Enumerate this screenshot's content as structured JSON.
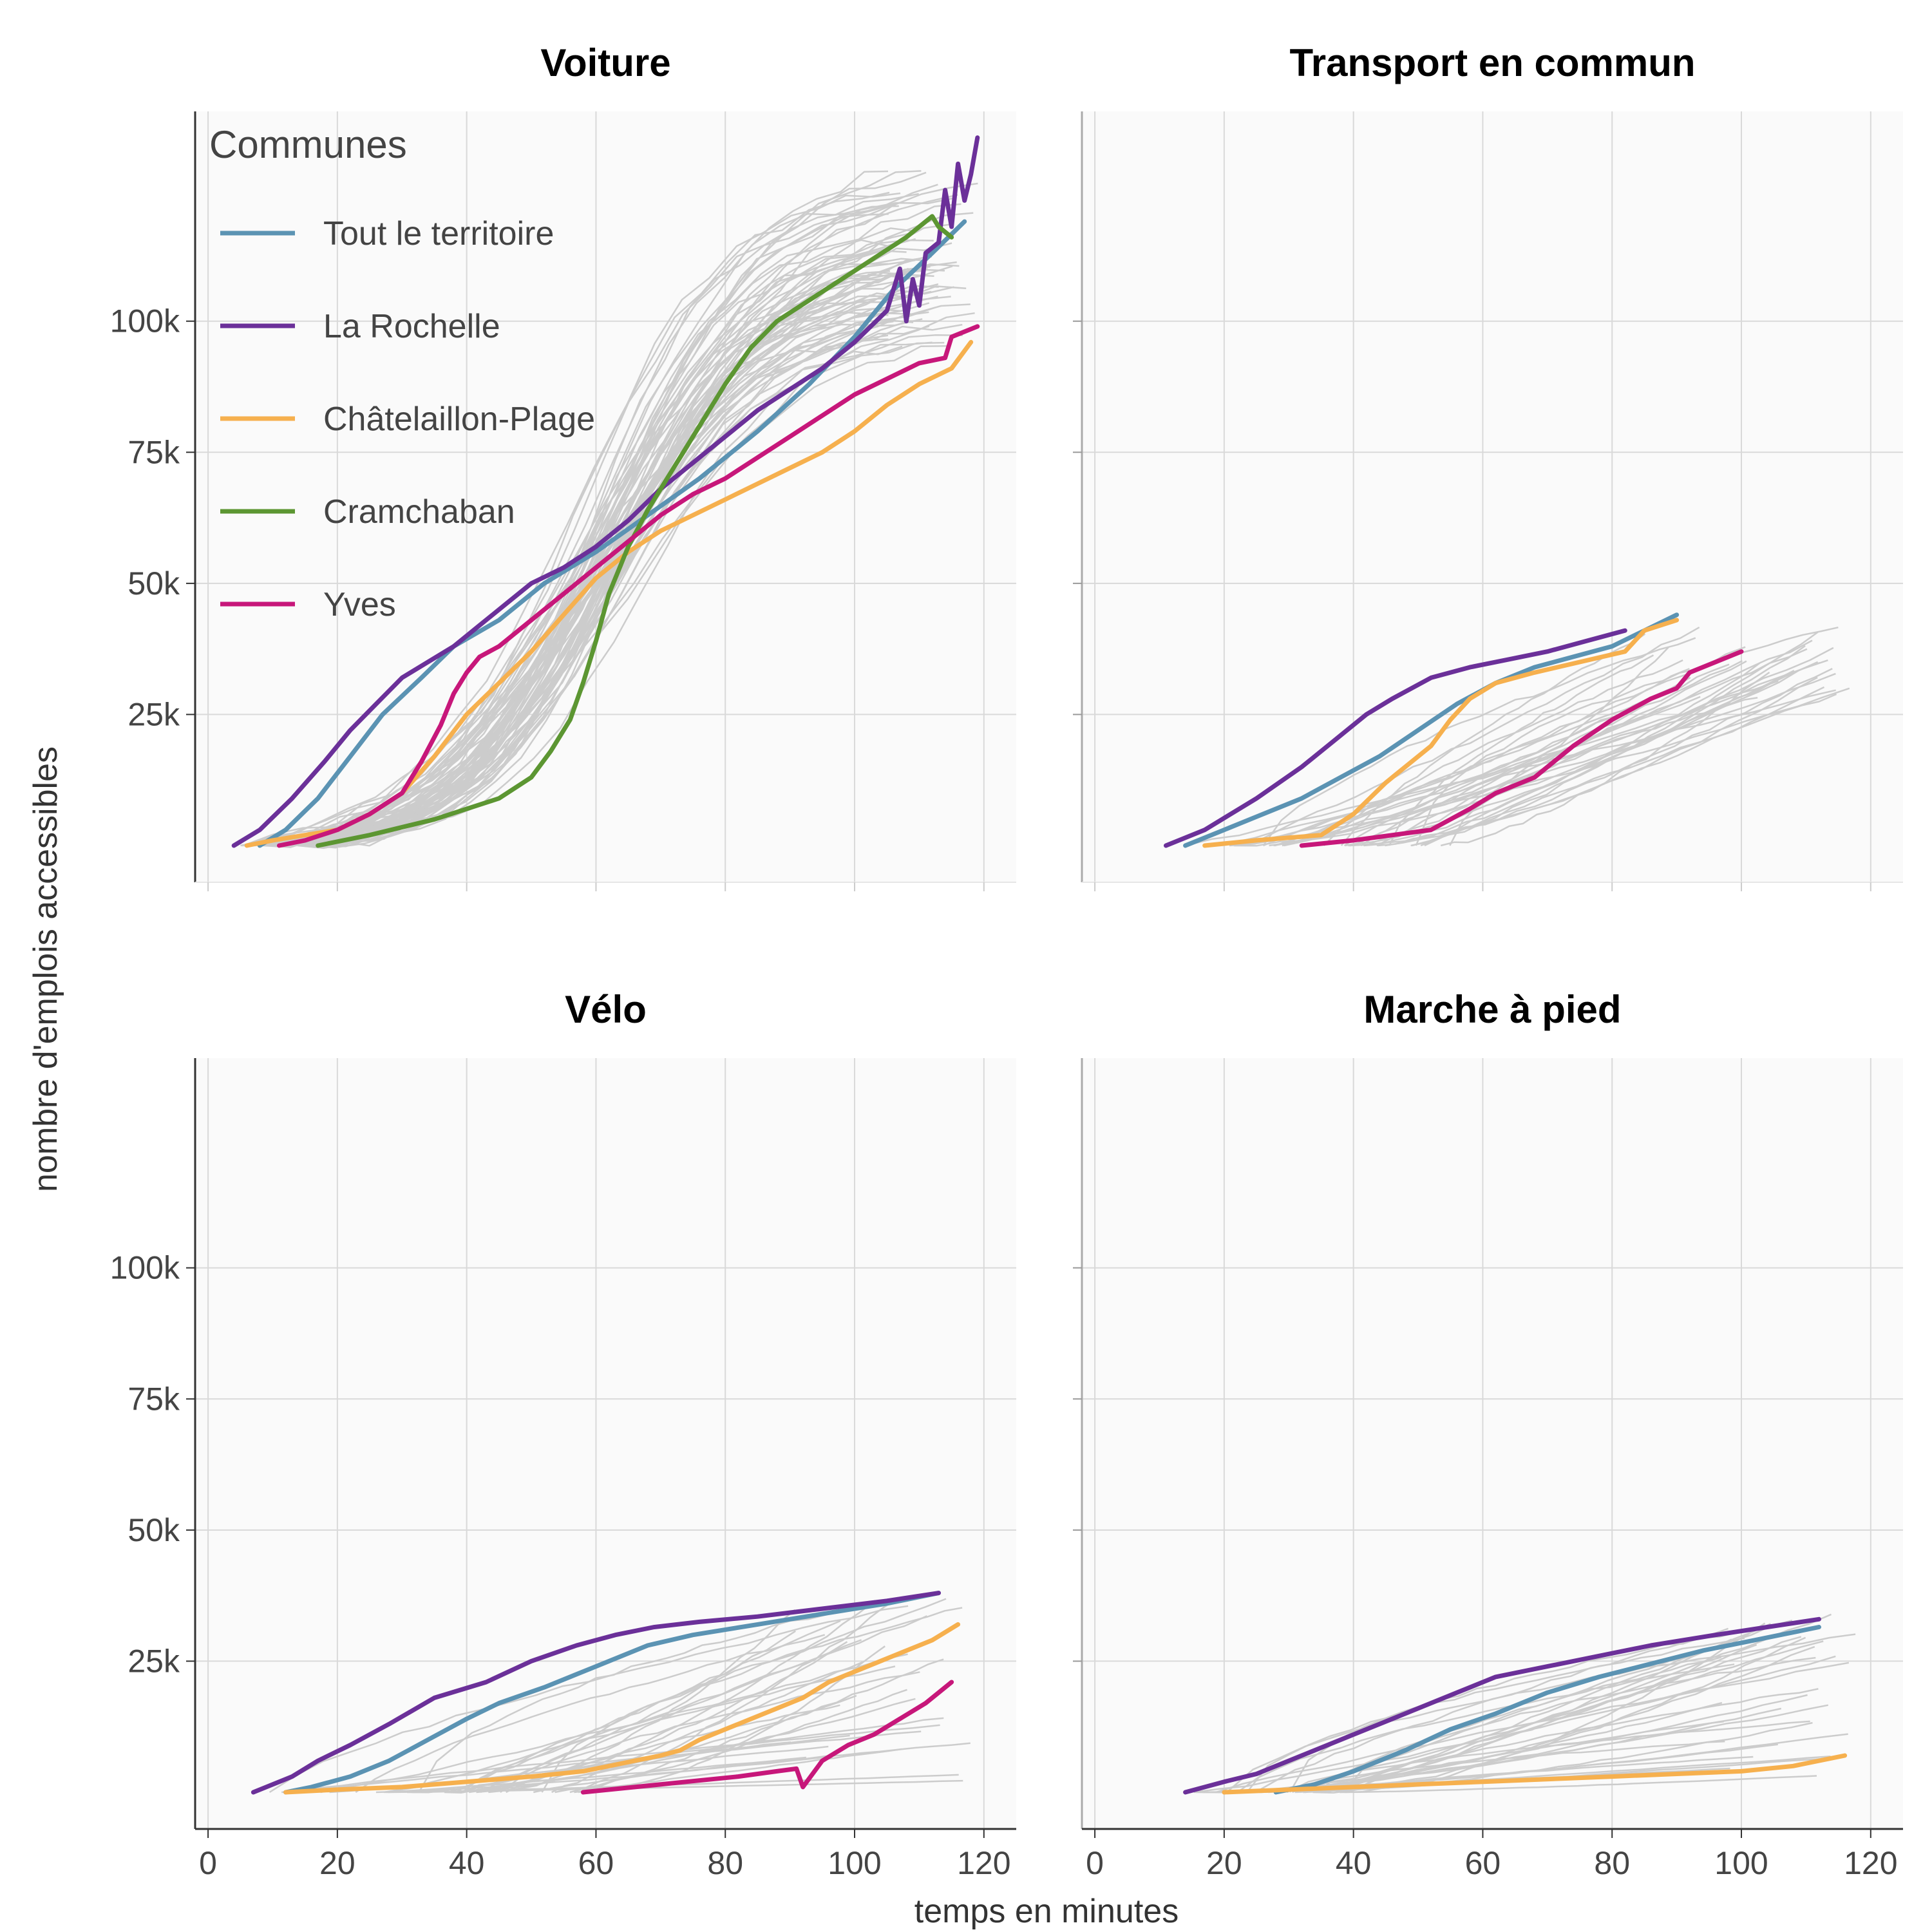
{
  "chart_data": {
    "type": "line",
    "xlabel": "temps en minutes",
    "ylabel": "nombre d'emplois accessibles",
    "x_ticks": [
      0,
      20,
      40,
      60,
      80,
      100,
      120
    ],
    "y_ticks": [
      25000,
      50000,
      75000,
      100000
    ],
    "y_tick_labels": [
      "25k",
      "50k",
      "75k",
      "100k"
    ],
    "xlim": [
      -2,
      125
    ],
    "ylim": [
      -7000,
      140000
    ],
    "grid": true,
    "legend": {
      "title": "Communes",
      "placement": "top-left",
      "entries": [
        "Tout le territoire",
        "La Rochelle",
        "Châtelaillon-Plage",
        "Cramchaban",
        "Yves"
      ]
    },
    "colors": {
      "Tout le territoire": "#5b93b3",
      "La Rochelle": "#6b3099",
      "Châtelaillon-Plage": "#f6b04e",
      "Cramchaban": "#5c9632",
      "Yves": "#c7177a",
      "other": "#cccccc"
    },
    "panels": [
      {
        "title": "Voiture",
        "series": [
          {
            "name": "Tout le territoire",
            "x": [
              8,
              12,
              17,
              22,
              27,
              33,
              38,
              45,
              52,
              60,
              68,
              76,
              85,
              93,
              100,
              106,
              112,
              117
            ],
            "y": [
              0,
              3000,
              9000,
              17000,
              25000,
              32000,
              38000,
              43000,
              50000,
              56000,
              63000,
              70000,
              79000,
              88000,
              97000,
              106000,
              113000,
              119000
            ]
          },
          {
            "name": "La Rochelle",
            "x": [
              4,
              8,
              13,
              18,
              22,
              26,
              30,
              34,
              38,
              42,
              46,
              50,
              55,
              60,
              65,
              70,
              75,
              80,
              85,
              90,
              95,
              100,
              105,
              107,
              108,
              109,
              110,
              111,
              113,
              114,
              115,
              116,
              117,
              118,
              119
            ],
            "y": [
              0,
              3000,
              9000,
              16000,
              22000,
              27000,
              32000,
              35000,
              38000,
              42000,
              46000,
              50000,
              53000,
              57000,
              62000,
              68000,
              73000,
              78000,
              83000,
              87000,
              91000,
              96000,
              102000,
              110000,
              100000,
              108000,
              103000,
              113000,
              115000,
              125000,
              118000,
              130000,
              123000,
              128000,
              135000
            ]
          },
          {
            "name": "Châtelaillon-Plage",
            "x": [
              6,
              10,
              15,
              20,
              25,
              30,
              35,
              40,
              45,
              50,
              55,
              60,
              65,
              70,
              75,
              80,
              85,
              90,
              95,
              100,
              105,
              110,
              115,
              118
            ],
            "y": [
              0,
              1000,
              2000,
              3000,
              6000,
              10000,
              17000,
              25000,
              31000,
              37000,
              44000,
              51000,
              56000,
              60000,
              63000,
              66000,
              69000,
              72000,
              75000,
              79000,
              84000,
              88000,
              91000,
              96000
            ]
          },
          {
            "name": "Cramchaban",
            "x": [
              17,
              25,
              35,
              45,
              50,
              53,
              56,
              58,
              60,
              62,
              65,
              68,
              72,
              76,
              80,
              84,
              88,
              93,
              98,
              103,
              108,
              112,
              113,
              115
            ],
            "y": [
              0,
              2000,
              5000,
              9000,
              13000,
              18000,
              24000,
              31000,
              39000,
              48000,
              57000,
              64000,
              72000,
              80000,
              88000,
              95000,
              100000,
              104000,
              108000,
              112000,
              116000,
              120000,
              118000,
              116000
            ]
          },
          {
            "name": "Yves",
            "x": [
              11,
              15,
              20,
              25,
              30,
              33,
              36,
              38,
              40,
              42,
              45,
              47,
              50,
              55,
              60,
              65,
              70,
              75,
              80,
              85,
              90,
              95,
              100,
              105,
              110,
              114,
              115,
              117,
              119
            ],
            "y": [
              0,
              1000,
              3000,
              6000,
              10000,
              16000,
              23000,
              29000,
              33000,
              36000,
              38000,
              40000,
              43000,
              48000,
              53000,
              58000,
              63000,
              67000,
              70000,
              74000,
              78000,
              82000,
              86000,
              89000,
              92000,
              93000,
              97000,
              98000,
              99000
            ]
          }
        ]
      },
      {
        "title": "Transport en commun",
        "series": [
          {
            "name": "Tout le territoire",
            "x": [
              14,
              20,
              26,
              32,
              38,
              44,
              50,
              56,
              62,
              68,
              74,
              80,
              85,
              90
            ],
            "y": [
              0,
              3000,
              6000,
              9000,
              13000,
              17000,
              22000,
              27000,
              31000,
              34000,
              36000,
              38000,
              41000,
              44000
            ]
          },
          {
            "name": "La Rochelle",
            "x": [
              11,
              17,
              25,
              32,
              38,
              42,
              46,
              52,
              58,
              64,
              70,
              76,
              82
            ],
            "y": [
              0,
              3000,
              9000,
              15000,
              21000,
              25000,
              28000,
              32000,
              34000,
              35500,
              37000,
              39000,
              41000
            ]
          },
          {
            "name": "Châtelaillon-Plage",
            "x": [
              17,
              25,
              35,
              40,
              45,
              52,
              55,
              58,
              62,
              68,
              75,
              82,
              85,
              90
            ],
            "y": [
              0,
              1000,
              2000,
              6000,
              12000,
              19000,
              24000,
              28000,
              31000,
              33000,
              35000,
              37000,
              41000,
              43000
            ]
          },
          {
            "name": "Yves",
            "x": [
              32,
              40,
              52,
              58,
              62,
              68,
              74,
              80,
              86,
              90,
              92,
              100
            ],
            "y": [
              0,
              1000,
              3000,
              7000,
              10000,
              13000,
              19000,
              24000,
              28000,
              30000,
              33000,
              37000
            ]
          }
        ]
      },
      {
        "title": "Vélo",
        "series": [
          {
            "name": "Tout le territoire",
            "x": [
              12,
              16,
              22,
              28,
              34,
              40,
              45,
              52,
              60,
              68,
              75,
              85,
              95,
              105,
              113
            ],
            "y": [
              0,
              1000,
              3000,
              6000,
              10000,
              14000,
              17000,
              20000,
              24000,
              28000,
              30000,
              32000,
              34000,
              36000,
              38000
            ]
          },
          {
            "name": "La Rochelle",
            "x": [
              7,
              13,
              17,
              22,
              28,
              35,
              43,
              50,
              57,
              63,
              69,
              76,
              85,
              95,
              105,
              113
            ],
            "y": [
              0,
              3000,
              6000,
              9000,
              13000,
              18000,
              21000,
              25000,
              28000,
              30000,
              31500,
              32500,
              33500,
              35000,
              36500,
              38000
            ]
          },
          {
            "name": "Châtelaillon-Plage",
            "x": [
              12,
              20,
              30,
              40,
              50,
              58,
              62,
              66,
              70,
              73,
              76,
              80,
              84,
              88,
              92,
              96,
              100,
              104,
              108,
              112,
              116
            ],
            "y": [
              0,
              500,
              1000,
              2000,
              3000,
              4000,
              5000,
              6000,
              7000,
              8000,
              10000,
              12000,
              14000,
              16000,
              18000,
              21000,
              23000,
              25000,
              27000,
              29000,
              32000
            ]
          },
          {
            "name": "Yves",
            "x": [
              58,
              66,
              74,
              82,
              88,
              91,
              92,
              95,
              99,
              103,
              107,
              111,
              115
            ],
            "y": [
              0,
              1000,
              2000,
              3000,
              4000,
              4500,
              1000,
              6000,
              9000,
              11000,
              14000,
              17000,
              21000
            ]
          }
        ]
      },
      {
        "title": "Marche à pied",
        "series": [
          {
            "name": "Tout le territoire",
            "x": [
              28,
              34,
              40,
              48,
              55,
              62,
              70,
              78,
              86,
              94,
              102,
              112
            ],
            "y": [
              0,
              1500,
              4000,
              8000,
              12000,
              15000,
              19000,
              22000,
              24500,
              27000,
              29000,
              31500
            ]
          },
          {
            "name": "La Rochelle",
            "x": [
              14,
              20,
              25,
              32,
              40,
              48,
              56,
              62,
              70,
              78,
              86,
              96,
              104,
              112
            ],
            "y": [
              0,
              2000,
              3500,
              7000,
              11000,
              15000,
              19000,
              22000,
              24000,
              26000,
              28000,
              30000,
              31500,
              33000
            ]
          },
          {
            "name": "Châtelaillon-Plage",
            "x": [
              20,
              40,
              60,
              80,
              100,
              108,
              116
            ],
            "y": [
              0,
              1000,
              2000,
              3000,
              4000,
              5000,
              7000
            ]
          }
        ]
      }
    ]
  }
}
